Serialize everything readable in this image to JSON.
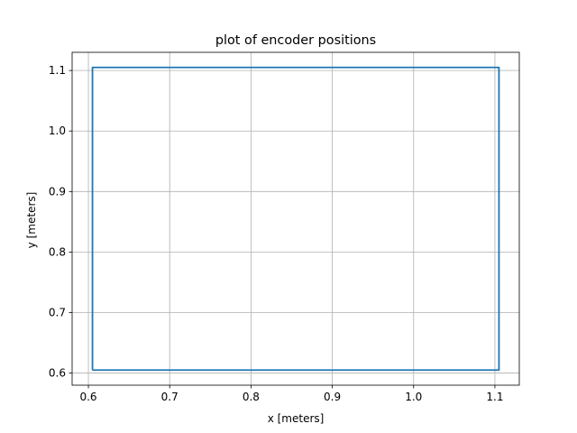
{
  "chart_data": {
    "type": "line",
    "title": "plot of encoder positions",
    "xlabel": "x [meters]",
    "ylabel": "y [meters]",
    "xlim": [
      0.58,
      1.13
    ],
    "ylim": [
      0.58,
      1.13
    ],
    "xticks": [
      0.6,
      0.7,
      0.8,
      0.9,
      1.0,
      1.1
    ],
    "yticks": [
      0.6,
      0.7,
      0.8,
      0.9,
      1.0,
      1.1
    ],
    "xtick_labels": [
      "0.6",
      "0.7",
      "0.8",
      "0.9",
      "1.0",
      "1.1"
    ],
    "ytick_labels": [
      "0.6",
      "0.7",
      "0.8",
      "0.9",
      "1.0",
      "1.1"
    ],
    "grid": true,
    "series": [
      {
        "color": "#1f77b4",
        "x": [
          0.605,
          1.105,
          1.105,
          0.605,
          0.605
        ],
        "y": [
          0.605,
          0.605,
          1.105,
          1.105,
          0.605
        ]
      }
    ]
  },
  "colors": {
    "line": "#1f77b4",
    "grid": "#b0b0b0",
    "axes": "#000000"
  }
}
